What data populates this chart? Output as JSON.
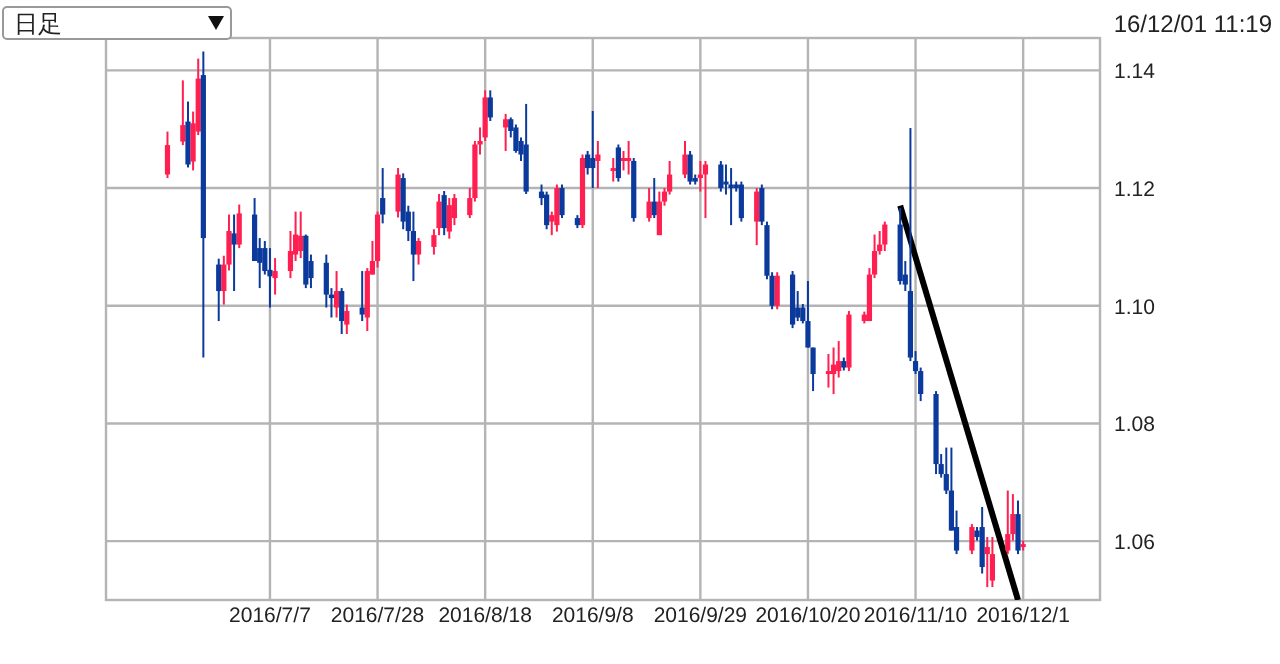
{
  "chart_data": {
    "type": "candlestick",
    "grid": true,
    "annotations": [
      "日足",
      "16/12/01 11:19"
    ],
    "xlim": [
      "2016-06-05",
      "2016-12-16"
    ],
    "xticks": [
      {
        "value": "2016-07-07",
        "label": "2016/7/7"
      },
      {
        "value": "2016-07-28",
        "label": "2016/7/28"
      },
      {
        "value": "2016-08-18",
        "label": "2016/8/18"
      },
      {
        "value": "2016-09-08",
        "label": "2016/9/8"
      },
      {
        "value": "2016-09-29",
        "label": "2016/9/29"
      },
      {
        "value": "2016-10-20",
        "label": "2016/10/20"
      },
      {
        "value": "2016-11-10",
        "label": "2016/11/10"
      },
      {
        "value": "2016-12-01",
        "label": "2016/12/1"
      }
    ],
    "ylim": [
      1.05,
      1.1455
    ],
    "yticks": [
      1.06,
      1.08,
      {
        "value": 1.1,
        "label": "1.10"
      },
      1.12,
      1.14
    ],
    "x": [
      "2016-06-17",
      "2016-06-20",
      "2016-06-21",
      "2016-06-22",
      "2016-06-23",
      "2016-06-24",
      "2016-06-27",
      "2016-06-28",
      "2016-06-29",
      "2016-06-30",
      "2016-07-01",
      "2016-07-04",
      "2016-07-05",
      "2016-07-06",
      "2016-07-07",
      "2016-07-08",
      "2016-07-11",
      "2016-07-12",
      "2016-07-13",
      "2016-07-14",
      "2016-07-15",
      "2016-07-18",
      "2016-07-19",
      "2016-07-20",
      "2016-07-21",
      "2016-07-22",
      "2016-07-25",
      "2016-07-26",
      "2016-07-27",
      "2016-07-28",
      "2016-07-29",
      "2016-08-01",
      "2016-08-02",
      "2016-08-03",
      "2016-08-04",
      "2016-08-05",
      "2016-08-08",
      "2016-08-09",
      "2016-08-10",
      "2016-08-11",
      "2016-08-12",
      "2016-08-15",
      "2016-08-16",
      "2016-08-17",
      "2016-08-18",
      "2016-08-19",
      "2016-08-22",
      "2016-08-23",
      "2016-08-24",
      "2016-08-25",
      "2016-08-26",
      "2016-08-29",
      "2016-08-30",
      "2016-08-31",
      "2016-09-01",
      "2016-09-02",
      "2016-09-05",
      "2016-09-06",
      "2016-09-07",
      "2016-09-08",
      "2016-09-09",
      "2016-09-12",
      "2016-09-13",
      "2016-09-14",
      "2016-09-15",
      "2016-09-16",
      "2016-09-19",
      "2016-09-20",
      "2016-09-21",
      "2016-09-22",
      "2016-09-23",
      "2016-09-26",
      "2016-09-27",
      "2016-09-28",
      "2016-09-29",
      "2016-09-30",
      "2016-10-03",
      "2016-10-04",
      "2016-10-05",
      "2016-10-06",
      "2016-10-07",
      "2016-10-10",
      "2016-10-11",
      "2016-10-12",
      "2016-10-13",
      "2016-10-14",
      "2016-10-17",
      "2016-10-18",
      "2016-10-19",
      "2016-10-20",
      "2016-10-21",
      "2016-10-24",
      "2016-10-25",
      "2016-10-26",
      "2016-10-27",
      "2016-10-28",
      "2016-10-31",
      "2016-11-01",
      "2016-11-02",
      "2016-11-03",
      "2016-11-04",
      "2016-11-07",
      "2016-11-08",
      "2016-11-09",
      "2016-11-10",
      "2016-11-11",
      "2016-11-14",
      "2016-11-15",
      "2016-11-16",
      "2016-11-17",
      "2016-11-18",
      "2016-11-21",
      "2016-11-22",
      "2016-11-23",
      "2016-11-24",
      "2016-11-25",
      "2016-11-28",
      "2016-11-29",
      "2016-11-30",
      "2016-12-01"
    ],
    "ohlc": [
      [
        1.1223,
        1.1296,
        1.1217,
        1.1273
      ],
      [
        1.1279,
        1.1383,
        1.1273,
        1.1307
      ],
      [
        1.1313,
        1.1347,
        1.1235,
        1.124
      ],
      [
        1.1245,
        1.133,
        1.123,
        1.131
      ],
      [
        1.1296,
        1.142,
        1.129,
        1.1386
      ],
      [
        1.1392,
        1.1432,
        1.0912,
        1.1115
      ],
      [
        1.107,
        1.108,
        1.0974,
        1.1025
      ],
      [
        1.1025,
        1.1085,
        1.1002,
        1.107
      ],
      [
        1.107,
        1.1155,
        1.106,
        1.1127
      ],
      [
        1.1123,
        1.1155,
        1.1025,
        1.1104
      ],
      [
        1.1104,
        1.1172,
        1.1098,
        1.1157
      ],
      [
        1.1155,
        1.1183,
        1.1076,
        1.1076
      ],
      [
        1.1098,
        1.1115,
        1.103,
        1.1073
      ],
      [
        1.1098,
        1.111,
        1.1053,
        1.1059
      ],
      [
        1.1061,
        1.1098,
        1.0997,
        1.105
      ],
      [
        1.1047,
        1.1081,
        1.1019,
        1.1059
      ],
      [
        1.1059,
        1.1127,
        1.1047,
        1.1093
      ],
      [
        1.1087,
        1.116,
        1.1076,
        1.1121
      ],
      [
        1.1093,
        1.116,
        1.1081,
        1.1119
      ],
      [
        1.1119,
        1.1121,
        1.103,
        1.1036
      ],
      [
        1.1076,
        1.1087,
        1.103,
        1.1047
      ],
      [
        1.1073,
        1.1087,
        1.0997,
        1.1019
      ],
      [
        1.1019,
        1.103,
        1.098,
        1.1013
      ],
      [
        1.0997,
        1.1059,
        1.098,
        1.1025
      ],
      [
        1.1025,
        1.103,
        1.0952,
        1.0974
      ],
      [
        1.0968,
        1.1002,
        1.0952,
        1.0991
      ],
      [
        1.0997,
        1.1059,
        1.0974,
        1.0985
      ],
      [
        1.098,
        1.1064,
        1.0957,
        1.1059
      ],
      [
        1.1053,
        1.111,
        1.1053,
        1.1076
      ],
      [
        1.1076,
        1.116,
        1.1065,
        1.1155
      ],
      [
        1.1183,
        1.1234,
        1.114,
        1.1155
      ],
      [
        1.116,
        1.1234,
        1.115,
        1.1223
      ],
      [
        1.1217,
        1.1225,
        1.113,
        1.1143
      ],
      [
        1.116,
        1.117,
        1.111,
        1.1127
      ],
      [
        1.1127,
        1.116,
        1.1042,
        1.1087
      ],
      [
        1.1087,
        1.1115,
        1.107,
        1.111
      ],
      [
        1.11,
        1.113,
        1.1087,
        1.112
      ],
      [
        1.1132,
        1.119,
        1.112,
        1.1177
      ],
      [
        1.1188,
        1.1195,
        1.112,
        1.1132
      ],
      [
        1.1126,
        1.1183,
        1.1114,
        1.1171
      ],
      [
        1.1149,
        1.119,
        1.1137,
        1.1183
      ],
      [
        1.1154,
        1.12,
        1.1149,
        1.1183
      ],
      [
        1.1183,
        1.128,
        1.1177,
        1.1274
      ],
      [
        1.1274,
        1.1303,
        1.1257,
        1.128
      ],
      [
        1.1286,
        1.1366,
        1.128,
        1.1354
      ],
      [
        1.1354,
        1.1366,
        1.1314,
        1.132
      ],
      [
        1.1303,
        1.1326,
        1.1263,
        1.1317
      ],
      [
        1.1317,
        1.132,
        1.1286,
        1.1297
      ],
      [
        1.1303,
        1.1308,
        1.126,
        1.1263
      ],
      [
        1.128,
        1.1286,
        1.1246,
        1.1257
      ],
      [
        1.1274,
        1.1343,
        1.119,
        1.1194
      ],
      [
        1.1194,
        1.1206,
        1.1171,
        1.1183
      ],
      [
        1.1189,
        1.1194,
        1.113,
        1.1137
      ],
      [
        1.1143,
        1.116,
        1.112,
        1.1154
      ],
      [
        1.1137,
        1.1206,
        1.1126,
        1.12
      ],
      [
        1.12,
        1.1206,
        1.1149,
        1.1154
      ],
      [
        1.1149,
        1.1154,
        1.1132,
        1.1137
      ],
      [
        1.1137,
        1.1257,
        1.1132,
        1.1251
      ],
      [
        1.1257,
        1.1263,
        1.1223,
        1.1234
      ],
      [
        1.1251,
        1.1331,
        1.12,
        1.1234
      ],
      [
        1.1246,
        1.128,
        1.12,
        1.1257
      ],
      [
        1.1229,
        1.1251,
        1.1211,
        1.1234
      ],
      [
        1.1269,
        1.1274,
        1.1211,
        1.1217
      ],
      [
        1.1246,
        1.1263,
        1.123,
        1.1251
      ],
      [
        1.1246,
        1.128,
        1.1223,
        1.1251
      ],
      [
        1.1246,
        1.1251,
        1.1143,
        1.1149
      ],
      [
        1.1149,
        1.12,
        1.1143,
        1.1177
      ],
      [
        1.1177,
        1.1217,
        1.1149,
        1.1154
      ],
      [
        1.112,
        1.1194,
        1.112,
        1.1177
      ],
      [
        1.1177,
        1.12,
        1.117,
        1.1194
      ],
      [
        1.1194,
        1.1246,
        1.1189,
        1.1223
      ],
      [
        1.1223,
        1.128,
        1.1217,
        1.1257
      ],
      [
        1.1257,
        1.1263,
        1.1206,
        1.1211
      ],
      [
        1.1217,
        1.1223,
        1.1206,
        1.1211
      ],
      [
        1.1217,
        1.1246,
        1.1194,
        1.1223
      ],
      [
        1.1223,
        1.1246,
        1.1149,
        1.124
      ],
      [
        1.124,
        1.1246,
        1.1194,
        1.12
      ],
      [
        1.1211,
        1.124,
        1.1189,
        1.1206
      ],
      [
        1.1206,
        1.1234,
        1.1137,
        1.12
      ],
      [
        1.1206,
        1.1211,
        1.1194,
        1.12
      ],
      [
        1.1206,
        1.1211,
        1.1143,
        1.1149
      ],
      [
        1.1143,
        1.12,
        1.1103,
        1.1194
      ],
      [
        1.12,
        1.1206,
        1.1137,
        1.1143
      ],
      [
        1.1137,
        1.1143,
        1.1045,
        1.1051
      ],
      [
        1.1051,
        1.1057,
        1.0994,
        1.1
      ],
      [
        1.1,
        1.1057,
        1.0994,
        1.1051
      ],
      [
        1.1053,
        1.1059,
        1.0962,
        1.0968
      ],
      [
        1.0997,
        1.1025,
        1.0974,
        1.098
      ],
      [
        1.0997,
        1.1003,
        1.097,
        1.0974
      ],
      [
        1.0974,
        1.1042,
        1.0929,
        1.0929
      ],
      [
        1.0929,
        1.0929,
        1.0855,
        1.0884
      ],
      [
        1.0884,
        1.0918,
        1.0861,
        1.0889
      ],
      [
        1.0884,
        1.0929,
        1.085,
        1.09
      ],
      [
        1.0889,
        1.094,
        1.0878,
        1.0906
      ],
      [
        1.0906,
        1.0912,
        1.089,
        1.0895
      ],
      [
        1.0895,
        1.0991,
        1.0889,
        1.0985
      ],
      [
        1.0974,
        1.099,
        1.097,
        1.0985
      ],
      [
        1.0974,
        1.1064,
        1.0974,
        1.1053
      ],
      [
        1.1053,
        1.1121,
        1.1047,
        1.1093
      ],
      [
        1.1093,
        1.1127,
        1.1087,
        1.1104
      ],
      [
        1.1104,
        1.1143,
        1.1093,
        1.1138
      ],
      [
        1.1138,
        1.1166,
        1.1036,
        1.1042
      ],
      [
        1.1053,
        1.1076,
        1.1025,
        1.1036
      ],
      [
        1.1025,
        1.1302,
        1.0906,
        1.0912
      ],
      [
        1.0906,
        1.0923,
        1.0884,
        1.0889
      ],
      [
        1.0889,
        1.0895,
        1.0838,
        1.085
      ],
      [
        1.085,
        1.0855,
        1.0714,
        1.0731
      ],
      [
        1.0731,
        1.0748,
        1.0708,
        1.0714
      ],
      [
        1.0714,
        1.0759,
        1.068,
        1.0686
      ],
      [
        1.0686,
        1.0759,
        1.0618,
        1.0618
      ],
      [
        1.0624,
        1.0652,
        1.0578,
        1.0584
      ],
      [
        1.0584,
        1.0629,
        1.0578,
        1.0624
      ],
      [
        1.0618,
        1.0624,
        1.0601,
        1.0607
      ],
      [
        1.0624,
        1.0658,
        1.0545,
        1.0556
      ],
      [
        1.0578,
        1.0607,
        1.0522,
        1.059
      ],
      [
        1.0533,
        1.0607,
        1.0522,
        1.0578
      ],
      [
        1.0584,
        1.0686,
        1.0578,
        1.0612
      ],
      [
        1.0612,
        1.068,
        1.0601,
        1.0646
      ],
      [
        1.0646,
        1.0669,
        1.0578,
        1.0584
      ],
      [
        1.059,
        1.0601,
        1.0584,
        1.0595
      ]
    ],
    "colors": [
      "#ff1f50",
      "#ff1f50",
      "#0b3a9c",
      "#ff1f50",
      "#ff1f50",
      "#0b3a9c",
      "#0b3a9c",
      "#ff1f50",
      "#ff1f50",
      "#0b3a9c",
      "#ff1f50",
      "#0b3a9c",
      "#0b3a9c",
      "#0b3a9c",
      "#0b3a9c",
      "#ff1f50",
      "#ff1f50",
      "#ff1f50",
      "#ff1f50",
      "#0b3a9c",
      "#0b3a9c",
      "#0b3a9c",
      "#0b3a9c",
      "#ff1f50",
      "#0b3a9c",
      "#ff1f50",
      "#0b3a9c",
      "#ff1f50",
      "#ff1f50",
      "#ff1f50",
      "#0b3a9c",
      "#ff1f50",
      "#0b3a9c",
      "#0b3a9c",
      "#0b3a9c",
      "#ff1f50",
      "#ff1f50",
      "#ff1f50",
      "#0b3a9c",
      "#ff1f50",
      "#ff1f50",
      "#ff1f50",
      "#ff1f50",
      "#ff1f50",
      "#ff1f50",
      "#0b3a9c",
      "#ff1f50",
      "#0b3a9c",
      "#0b3a9c",
      "#0b3a9c",
      "#0b3a9c",
      "#0b3a9c",
      "#0b3a9c",
      "#ff1f50",
      "#ff1f50",
      "#0b3a9c",
      "#0b3a9c",
      "#ff1f50",
      "#0b3a9c",
      "#0b3a9c",
      "#ff1f50",
      "#ff1f50",
      "#0b3a9c",
      "#ff1f50",
      "#ff1f50",
      "#0b3a9c",
      "#ff1f50",
      "#0b3a9c",
      "#ff1f50",
      "#ff1f50",
      "#ff1f50",
      "#ff1f50",
      "#0b3a9c",
      "#0b3a9c",
      "#ff1f50",
      "#ff1f50",
      "#0b3a9c",
      "#0b3a9c",
      "#0b3a9c",
      "#0b3a9c",
      "#0b3a9c",
      "#ff1f50",
      "#0b3a9c",
      "#0b3a9c",
      "#0b3a9c",
      "#ff1f50",
      "#0b3a9c",
      "#0b3a9c",
      "#0b3a9c",
      "#0b3a9c",
      "#0b3a9c",
      "#ff1f50",
      "#ff1f50",
      "#ff1f50",
      "#0b3a9c",
      "#ff1f50",
      "#ff1f50",
      "#ff1f50",
      "#ff1f50",
      "#ff1f50",
      "#ff1f50",
      "#0b3a9c",
      "#0b3a9c",
      "#0b3a9c",
      "#0b3a9c",
      "#0b3a9c",
      "#0b3a9c",
      "#0b3a9c",
      "#0b3a9c",
      "#0b3a9c",
      "#0b3a9c",
      "#ff1f50",
      "#0b3a9c",
      "#0b3a9c",
      "#ff1f50",
      "#ff1f50",
      "#ff1f50",
      "#ff1f50",
      "#0b3a9c",
      "#ff1f50"
    ],
    "series": [
      {
        "type": "line",
        "x": [
          "2016-11-07",
          "2016-11-30"
        ],
        "values": [
          1.117,
          1.05
        ],
        "color": "#000000"
      }
    ]
  }
}
